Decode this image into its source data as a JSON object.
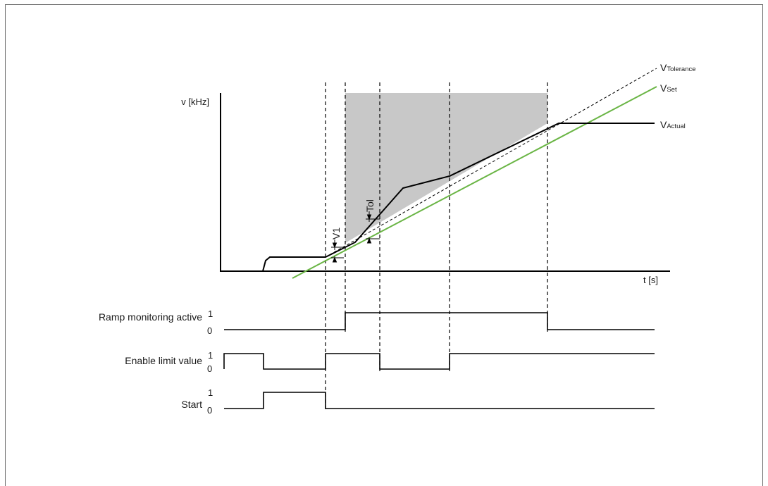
{
  "axes": {
    "y_label": "v [kHz]",
    "x_label": "t [s]"
  },
  "curves": {
    "tolerance": {
      "label_main": "V",
      "label_sub": "Tolerance",
      "color": "#000000",
      "style": "dashed"
    },
    "set": {
      "label_main": "V",
      "label_sub": "Set",
      "color": "#6ab545"
    },
    "actual": {
      "label_main": "V",
      "label_sub": "Actual",
      "color": "#000000"
    }
  },
  "annotations": {
    "v1": "V1",
    "tol": "Tol"
  },
  "monitoring_region_color": "#c8c8c8",
  "signals": [
    {
      "name": "Ramp monitoring active",
      "high": "1",
      "low": "0"
    },
    {
      "name": "Enable limit value",
      "high": "1",
      "low": "0"
    },
    {
      "name": "Start",
      "high": "1",
      "low": "0"
    }
  ]
}
